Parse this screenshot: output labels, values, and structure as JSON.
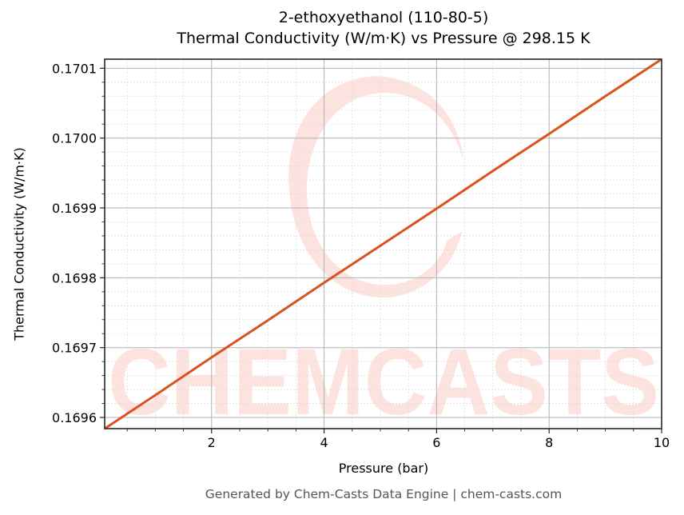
{
  "header": {
    "title_line1": "2-ethoxyethanol (110-80-5)",
    "title_line2": "Thermal Conductivity (W/m·K) vs Pressure @ 298.15 K"
  },
  "axes": {
    "xlabel": "Pressure (bar)",
    "ylabel": "Thermal Conductivity (W/m·K)",
    "xticks": [
      "2",
      "4",
      "6",
      "8",
      "10"
    ],
    "yticks": [
      "0.1696",
      "0.1697",
      "0.1698",
      "0.1699",
      "0.1700",
      "0.1701"
    ]
  },
  "footer": {
    "text": "Generated by Chem-Casts Data Engine | chem-casts.com"
  },
  "watermark": {
    "text": "CHEMCASTS",
    "color": "#fde3e0"
  },
  "colors": {
    "line": "#d9531e",
    "major_grid": "#b0b0b0",
    "minor_grid": "#dddddd",
    "axes": "#262626"
  },
  "chart_data": {
    "type": "line",
    "title": "2-ethoxyethanol (110-80-5)\nThermal Conductivity (W/m·K) vs Pressure @ 298.15 K",
    "xlabel": "Pressure (bar)",
    "ylabel": "Thermal Conductivity (W/m·K)",
    "xlim": [
      0.1,
      10
    ],
    "ylim": [
      0.169584,
      0.170113
    ],
    "grid": true,
    "legend": null,
    "series": [
      {
        "name": "Thermal Conductivity",
        "x": [
          0.1,
          1,
          2,
          3,
          4,
          5,
          6,
          7,
          8,
          9,
          10
        ],
        "y": [
          0.169584,
          0.169632,
          0.169686,
          0.169739,
          0.169793,
          0.169846,
          0.169899,
          0.169953,
          0.170006,
          0.17006,
          0.170113
        ]
      }
    ]
  }
}
